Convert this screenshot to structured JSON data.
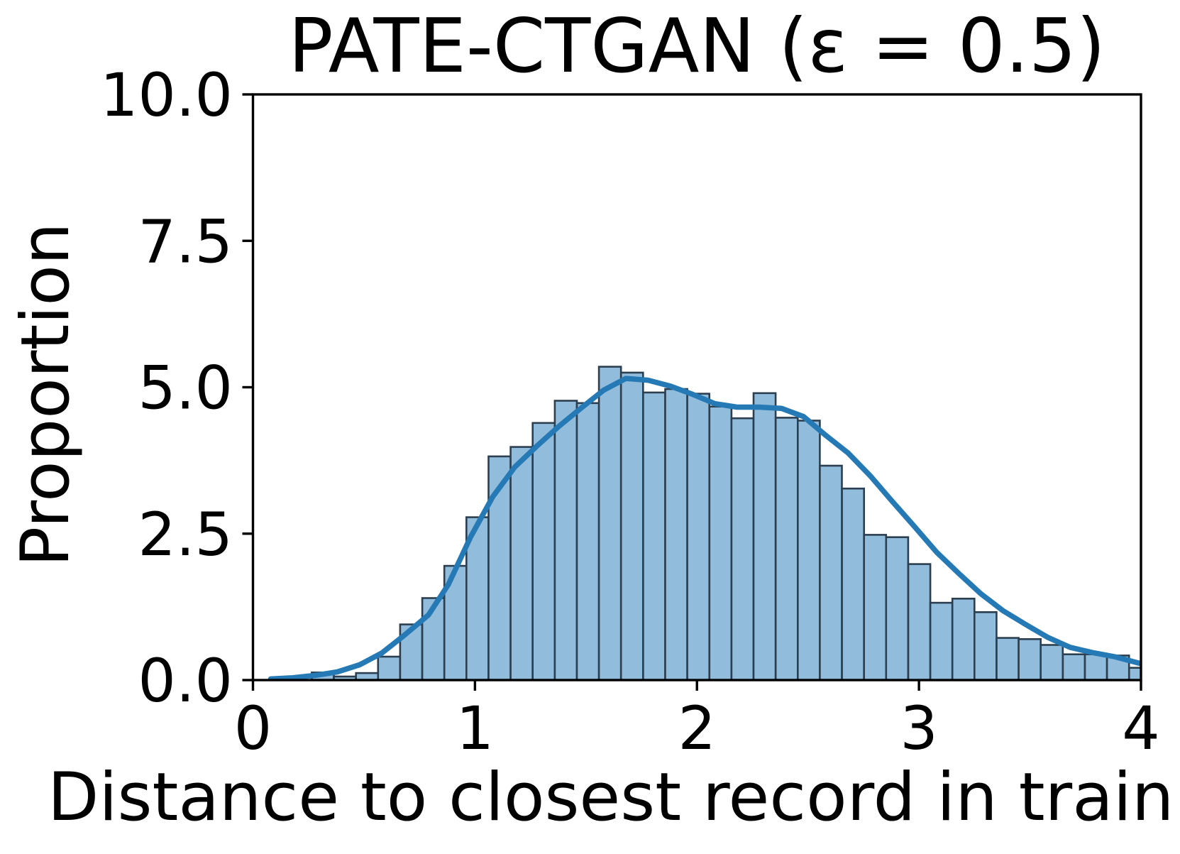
{
  "figure": {
    "title": "PATE-CTGAN (ε = 0.5)",
    "x_axis": {
      "label": "Distance to closest record in trainin",
      "tick_labels": [
        "0",
        "1",
        "2",
        "3",
        "4"
      ],
      "tick_values": [
        0,
        1,
        2,
        3,
        4
      ],
      "range": [
        0,
        4
      ]
    },
    "y_axis": {
      "label": "Proportion",
      "tick_labels": [
        "0.0",
        "2.5",
        "5.0",
        "7.5",
        "10.0"
      ],
      "tick_values": [
        0,
        2.5,
        5,
        7.5,
        10
      ],
      "range": [
        0,
        10
      ]
    }
  },
  "chart_data": {
    "type": "bar",
    "subtype": "histogram_with_kde_line",
    "title": "PATE-CTGAN (ε = 0.5)",
    "xlabel": "Distance to closest record in trainin",
    "ylabel": "Proportion",
    "xlim": [
      0,
      4
    ],
    "ylim": [
      0,
      10
    ],
    "grid": false,
    "legend": "none",
    "bins": {
      "start": 0.265,
      "width": 0.0995,
      "values": [
        0.13,
        0.06,
        0.12,
        0.4,
        0.95,
        1.4,
        1.95,
        2.78,
        3.82,
        3.98,
        4.39,
        4.77,
        4.73,
        5.35,
        5.25,
        4.91,
        4.97,
        4.89,
        4.67,
        4.47,
        4.9,
        4.48,
        4.43,
        3.66,
        3.27,
        2.48,
        2.44,
        1.98,
        1.32,
        1.39,
        1.16,
        0.72,
        0.7,
        0.6,
        0.44,
        0.44,
        0.42,
        0.21
      ]
    },
    "kde_line": {
      "points": [
        [
          0.08,
          0.02
        ],
        [
          0.18,
          0.04
        ],
        [
          0.28,
          0.08
        ],
        [
          0.38,
          0.14
        ],
        [
          0.48,
          0.26
        ],
        [
          0.58,
          0.46
        ],
        [
          0.68,
          0.76
        ],
        [
          0.79,
          1.11
        ],
        [
          0.88,
          1.63
        ],
        [
          0.98,
          2.44
        ],
        [
          1.08,
          3.13
        ],
        [
          1.18,
          3.64
        ],
        [
          1.28,
          4.0
        ],
        [
          1.38,
          4.34
        ],
        [
          1.48,
          4.65
        ],
        [
          1.58,
          4.95
        ],
        [
          1.68,
          5.15
        ],
        [
          1.78,
          5.12
        ],
        [
          1.88,
          5.02
        ],
        [
          1.98,
          4.88
        ],
        [
          2.08,
          4.72
        ],
        [
          2.18,
          4.66
        ],
        [
          2.28,
          4.66
        ],
        [
          2.38,
          4.64
        ],
        [
          2.48,
          4.5
        ],
        [
          2.58,
          4.18
        ],
        [
          2.68,
          3.88
        ],
        [
          2.78,
          3.49
        ],
        [
          2.88,
          3.05
        ],
        [
          2.98,
          2.62
        ],
        [
          3.08,
          2.18
        ],
        [
          3.18,
          1.82
        ],
        [
          3.28,
          1.47
        ],
        [
          3.38,
          1.18
        ],
        [
          3.48,
          0.95
        ],
        [
          3.58,
          0.73
        ],
        [
          3.68,
          0.56
        ],
        [
          3.78,
          0.47
        ],
        [
          3.88,
          0.4
        ],
        [
          3.98,
          0.3
        ],
        [
          4.0,
          0.28
        ]
      ]
    },
    "colors": {
      "bar_fill": "#92bcdc",
      "bar_edge": "#2b3f50",
      "kde_line": "#2579b5",
      "axis": "#000000",
      "background": "#ffffff"
    }
  }
}
